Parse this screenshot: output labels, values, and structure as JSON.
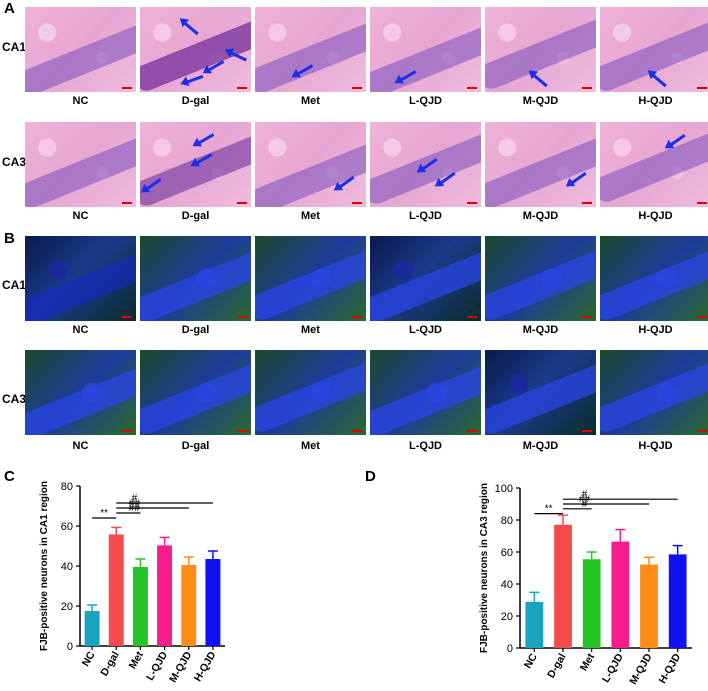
{
  "panels": {
    "A": "A",
    "B": "B",
    "C": "C",
    "D": "D"
  },
  "rows": {
    "ca1": "CA1",
    "ca3": "CA3"
  },
  "groups": [
    "NC",
    "D-gal",
    "Met",
    "L-QJD",
    "M-QJD",
    "H-QJD"
  ],
  "colors": {
    "NC": "#1aa3bd",
    "D-gal": "#f44b4b",
    "Met": "#27c427",
    "L-QJD": "#f51c8c",
    "M-QJD": "#ff8c19",
    "H-QJD": "#1010f0",
    "arrow": "#1d2ee8"
  },
  "chart_data": [
    {
      "type": "bar",
      "panel": "C",
      "ylabel": "FJB-positive neurons in CA1 region",
      "categories": [
        "NC",
        "D-gal",
        "Met",
        "L-QJD",
        "M-QJD",
        "H-QJD"
      ],
      "values": [
        17.5,
        55.8,
        39.5,
        50.3,
        40.5,
        43.5
      ],
      "errors": [
        3,
        3.5,
        4,
        4,
        4,
        4
      ],
      "ylim": [
        0,
        80
      ],
      "yticks": [
        "0",
        "20",
        "40",
        "60",
        "80"
      ],
      "annotations": [
        {
          "label": "**",
          "from": 0,
          "to": 1,
          "level": 64
        },
        {
          "label": "##",
          "from": 1,
          "to": 2,
          "level": 66.5
        },
        {
          "label": "##",
          "from": 1,
          "to": 4,
          "level": 69
        },
        {
          "label": "#",
          "from": 1,
          "to": 5,
          "level": 71.5
        }
      ]
    },
    {
      "type": "bar",
      "panel": "D",
      "ylabel": "FJB-positive neurons in CA3 region",
      "categories": [
        "NC",
        "D-gal",
        "Met",
        "L-QJD",
        "M-QJD",
        "H-QJD"
      ],
      "values": [
        28.8,
        77,
        55.5,
        66.5,
        52.2,
        58.5
      ],
      "errors": [
        6,
        6,
        4.5,
        7.5,
        4.5,
        5.5
      ],
      "ylim": [
        0,
        100
      ],
      "yticks": [
        "0",
        "20",
        "40",
        "60",
        "80",
        "100"
      ],
      "annotations": [
        {
          "label": "**",
          "from": 0,
          "to": 1,
          "level": 84
        },
        {
          "label": "#",
          "from": 1,
          "to": 2,
          "level": 87
        },
        {
          "label": "##",
          "from": 1,
          "to": 4,
          "level": 90
        },
        {
          "label": "#",
          "from": 1,
          "to": 5,
          "level": 93
        }
      ]
    }
  ]
}
